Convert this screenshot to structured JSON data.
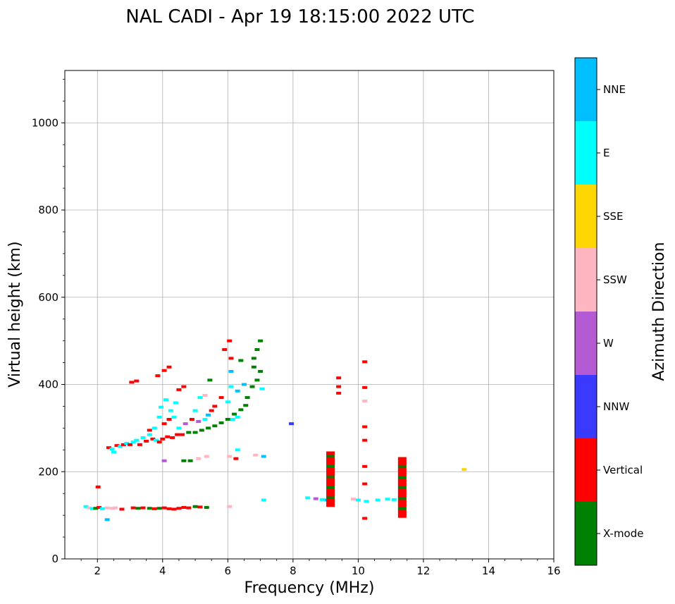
{
  "chart_data": {
    "type": "scatter",
    "title": "NAL CADI - Apr 19 18:15:00 2022 UTC",
    "xlabel": "Frequency (MHz)",
    "ylabel": "Virtual height (km)",
    "xlim": [
      1,
      16
    ],
    "ylim": [
      0,
      1120
    ],
    "xticks": [
      "2",
      "4",
      "6",
      "8",
      "10",
      "12",
      "14",
      "16"
    ],
    "xtick_values": [
      2,
      4,
      6,
      8,
      10,
      12,
      14,
      16
    ],
    "yticks": [
      "0",
      "200",
      "400",
      "600",
      "800",
      "1000"
    ],
    "ytick_values": [
      0,
      200,
      400,
      600,
      800,
      1000
    ],
    "grid": true,
    "colorbar": {
      "label": "Azimuth Direction",
      "categories": [
        "X-mode",
        "Vertical",
        "NNW",
        "W",
        "SSW",
        "SSE",
        "E",
        "NNE"
      ],
      "colors": [
        "#008000",
        "#ff0000",
        "#3a3aff",
        "#b45ad4",
        "#ffb6c1",
        "#ffd700",
        "#00ffff",
        "#00bfff"
      ]
    },
    "points": [
      {
        "f": 1.65,
        "h": 120,
        "c": 6
      },
      {
        "f": 1.75,
        "h": 117,
        "c": 4
      },
      {
        "f": 1.85,
        "h": 115,
        "c": 6
      },
      {
        "f": 1.95,
        "h": 116,
        "c": 0
      },
      {
        "f": 2.05,
        "h": 118,
        "c": 1
      },
      {
        "f": 2.02,
        "h": 165,
        "c": 1
      },
      {
        "f": 2.15,
        "h": 115,
        "c": 6
      },
      {
        "f": 2.3,
        "h": 117,
        "c": 4
      },
      {
        "f": 2.45,
        "h": 116,
        "c": 4
      },
      {
        "f": 2.55,
        "h": 117,
        "c": 4
      },
      {
        "f": 2.75,
        "h": 114,
        "c": 1
      },
      {
        "f": 2.3,
        "h": 90,
        "c": 7
      },
      {
        "f": 3.1,
        "h": 117,
        "c": 1
      },
      {
        "f": 3.25,
        "h": 116,
        "c": 0
      },
      {
        "f": 3.4,
        "h": 117,
        "c": 1
      },
      {
        "f": 3.6,
        "h": 116,
        "c": 0
      },
      {
        "f": 3.75,
        "h": 115,
        "c": 1
      },
      {
        "f": 3.9,
        "h": 116,
        "c": 0
      },
      {
        "f": 4.05,
        "h": 117,
        "c": 1
      },
      {
        "f": 4.2,
        "h": 115,
        "c": 1
      },
      {
        "f": 4.35,
        "h": 114,
        "c": 1
      },
      {
        "f": 4.5,
        "h": 116,
        "c": 1
      },
      {
        "f": 4.65,
        "h": 118,
        "c": 1
      },
      {
        "f": 4.8,
        "h": 117,
        "c": 1
      },
      {
        "f": 5.0,
        "h": 120,
        "c": 0
      },
      {
        "f": 5.15,
        "h": 119,
        "c": 1
      },
      {
        "f": 5.35,
        "h": 118,
        "c": 0
      },
      {
        "f": 6.05,
        "h": 120,
        "c": 4
      },
      {
        "f": 2.35,
        "h": 255,
        "c": 1
      },
      {
        "f": 2.45,
        "h": 252,
        "c": 6
      },
      {
        "f": 2.5,
        "h": 245,
        "c": 6
      },
      {
        "f": 2.6,
        "h": 260,
        "c": 1
      },
      {
        "f": 2.7,
        "h": 258,
        "c": 6
      },
      {
        "f": 2.8,
        "h": 262,
        "c": 1
      },
      {
        "f": 2.9,
        "h": 265,
        "c": 6
      },
      {
        "f": 3.0,
        "h": 262,
        "c": 1
      },
      {
        "f": 3.1,
        "h": 268,
        "c": 6
      },
      {
        "f": 3.2,
        "h": 272,
        "c": 6
      },
      {
        "f": 3.3,
        "h": 262,
        "c": 1
      },
      {
        "f": 3.4,
        "h": 278,
        "c": 6
      },
      {
        "f": 3.5,
        "h": 270,
        "c": 1
      },
      {
        "f": 3.6,
        "h": 285,
        "c": 6
      },
      {
        "f": 3.7,
        "h": 275,
        "c": 1
      },
      {
        "f": 3.8,
        "h": 272,
        "c": 6
      },
      {
        "f": 3.9,
        "h": 268,
        "c": 1
      },
      {
        "f": 4.0,
        "h": 275,
        "c": 1
      },
      {
        "f": 4.15,
        "h": 280,
        "c": 1
      },
      {
        "f": 4.3,
        "h": 278,
        "c": 1
      },
      {
        "f": 4.45,
        "h": 285,
        "c": 1
      },
      {
        "f": 4.6,
        "h": 285,
        "c": 1
      },
      {
        "f": 4.8,
        "h": 290,
        "c": 0
      },
      {
        "f": 5.0,
        "h": 290,
        "c": 0
      },
      {
        "f": 5.2,
        "h": 295,
        "c": 0
      },
      {
        "f": 5.4,
        "h": 300,
        "c": 0
      },
      {
        "f": 5.6,
        "h": 305,
        "c": 0
      },
      {
        "f": 5.8,
        "h": 312,
        "c": 0
      },
      {
        "f": 6.0,
        "h": 320,
        "c": 0
      },
      {
        "f": 6.2,
        "h": 332,
        "c": 0
      },
      {
        "f": 6.4,
        "h": 342,
        "c": 0
      },
      {
        "f": 6.55,
        "h": 352,
        "c": 0
      },
      {
        "f": 6.6,
        "h": 370,
        "c": 0
      },
      {
        "f": 6.75,
        "h": 395,
        "c": 0
      },
      {
        "f": 6.9,
        "h": 410,
        "c": 0
      },
      {
        "f": 7.0,
        "h": 430,
        "c": 0
      },
      {
        "f": 6.8,
        "h": 460,
        "c": 0
      },
      {
        "f": 6.9,
        "h": 480,
        "c": 0
      },
      {
        "f": 7.0,
        "h": 500,
        "c": 0
      },
      {
        "f": 6.4,
        "h": 455,
        "c": 0
      },
      {
        "f": 6.8,
        "h": 440,
        "c": 0
      },
      {
        "f": 7.05,
        "h": 390,
        "c": 6
      },
      {
        "f": 5.9,
        "h": 480,
        "c": 1
      },
      {
        "f": 6.05,
        "h": 500,
        "c": 1
      },
      {
        "f": 6.1,
        "h": 460,
        "c": 1
      },
      {
        "f": 6.1,
        "h": 430,
        "c": 7
      },
      {
        "f": 6.3,
        "h": 385,
        "c": 7
      },
      {
        "f": 6.5,
        "h": 400,
        "c": 7
      },
      {
        "f": 6.1,
        "h": 395,
        "c": 6
      },
      {
        "f": 6.0,
        "h": 360,
        "c": 6
      },
      {
        "f": 5.8,
        "h": 370,
        "c": 1
      },
      {
        "f": 5.6,
        "h": 350,
        "c": 1
      },
      {
        "f": 5.5,
        "h": 340,
        "c": 1
      },
      {
        "f": 5.4,
        "h": 330,
        "c": 7
      },
      {
        "f": 5.3,
        "h": 320,
        "c": 6
      },
      {
        "f": 5.1,
        "h": 315,
        "c": 3
      },
      {
        "f": 5.0,
        "h": 340,
        "c": 6
      },
      {
        "f": 4.9,
        "h": 320,
        "c": 1
      },
      {
        "f": 4.7,
        "h": 310,
        "c": 3
      },
      {
        "f": 4.5,
        "h": 300,
        "c": 6
      },
      {
        "f": 4.35,
        "h": 325,
        "c": 6
      },
      {
        "f": 4.2,
        "h": 320,
        "c": 1
      },
      {
        "f": 4.05,
        "h": 310,
        "c": 1
      },
      {
        "f": 3.9,
        "h": 325,
        "c": 6
      },
      {
        "f": 3.75,
        "h": 300,
        "c": 6
      },
      {
        "f": 3.6,
        "h": 295,
        "c": 1
      },
      {
        "f": 4.1,
        "h": 365,
        "c": 6
      },
      {
        "f": 4.4,
        "h": 358,
        "c": 6
      },
      {
        "f": 3.95,
        "h": 348,
        "c": 6
      },
      {
        "f": 4.25,
        "h": 340,
        "c": 6
      },
      {
        "f": 5.3,
        "h": 375,
        "c": 4
      },
      {
        "f": 5.15,
        "h": 370,
        "c": 6
      },
      {
        "f": 5.45,
        "h": 410,
        "c": 0
      },
      {
        "f": 6.15,
        "h": 320,
        "c": 6
      },
      {
        "f": 6.3,
        "h": 325,
        "c": 6
      },
      {
        "f": 3.05,
        "h": 405,
        "c": 1
      },
      {
        "f": 3.2,
        "h": 408,
        "c": 1
      },
      {
        "f": 3.85,
        "h": 420,
        "c": 1
      },
      {
        "f": 4.05,
        "h": 432,
        "c": 1
      },
      {
        "f": 4.2,
        "h": 440,
        "c": 1
      },
      {
        "f": 4.5,
        "h": 388,
        "c": 1
      },
      {
        "f": 4.65,
        "h": 395,
        "c": 1
      },
      {
        "f": 4.05,
        "h": 225,
        "c": 3
      },
      {
        "f": 4.65,
        "h": 225,
        "c": 0
      },
      {
        "f": 4.85,
        "h": 225,
        "c": 0
      },
      {
        "f": 5.1,
        "h": 230,
        "c": 4
      },
      {
        "f": 5.35,
        "h": 235,
        "c": 4
      },
      {
        "f": 6.05,
        "h": 235,
        "c": 4
      },
      {
        "f": 6.25,
        "h": 230,
        "c": 1
      },
      {
        "f": 6.3,
        "h": 250,
        "c": 6
      },
      {
        "f": 6.85,
        "h": 238,
        "c": 4
      },
      {
        "f": 7.1,
        "h": 235,
        "c": 7
      },
      {
        "f": 7.1,
        "h": 135,
        "c": 6
      },
      {
        "f": 7.95,
        "h": 310,
        "c": 2
      },
      {
        "f": 8.45,
        "h": 140,
        "c": 6
      },
      {
        "f": 8.7,
        "h": 138,
        "c": 3
      },
      {
        "f": 8.9,
        "h": 136,
        "c": 6
      },
      {
        "f": 9.05,
        "h": 135,
        "c": 7
      },
      {
        "f": 9.85,
        "h": 137,
        "c": 4
      },
      {
        "f": 10.0,
        "h": 135,
        "c": 6
      },
      {
        "f": 10.25,
        "h": 132,
        "c": 6
      },
      {
        "f": 10.6,
        "h": 135,
        "c": 6
      },
      {
        "f": 10.9,
        "h": 137,
        "c": 6
      },
      {
        "f": 11.1,
        "h": 136,
        "c": 6
      },
      {
        "f": 13.25,
        "h": 205,
        "c": 5
      },
      {
        "f": 10.2,
        "h": 452,
        "c": 1
      },
      {
        "f": 10.2,
        "h": 393,
        "c": 1
      },
      {
        "f": 10.2,
        "h": 362,
        "c": 4
      },
      {
        "f": 10.2,
        "h": 303,
        "c": 1
      },
      {
        "f": 10.2,
        "h": 272,
        "c": 1
      },
      {
        "f": 10.2,
        "h": 212,
        "c": 1
      },
      {
        "f": 10.2,
        "h": 172,
        "c": 1
      },
      {
        "f": 10.2,
        "h": 93,
        "c": 1
      },
      {
        "f": 9.4,
        "h": 415,
        "c": 1
      },
      {
        "f": 9.4,
        "h": 395,
        "c": 1
      },
      {
        "f": 9.4,
        "h": 380,
        "c": 1
      }
    ],
    "columns": [
      {
        "f": 9.15,
        "from": 120,
        "to": 240,
        "c": 1,
        "stripe": 0
      },
      {
        "f": 11.35,
        "from": 95,
        "to": 230,
        "c": 1,
        "stripe": 0
      }
    ]
  }
}
